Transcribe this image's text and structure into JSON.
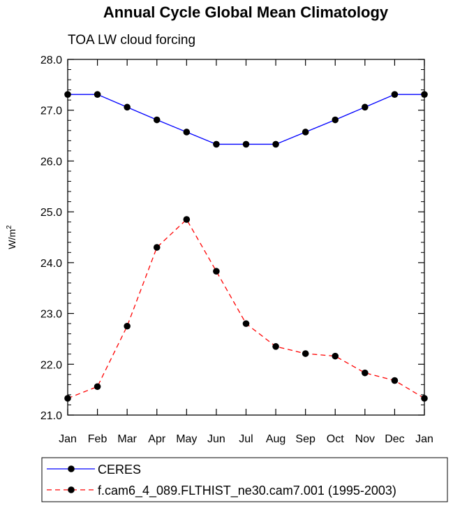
{
  "chart_data": {
    "type": "line",
    "title": "Annual Cycle Global Mean Climatology",
    "subtitle": "TOA LW cloud forcing",
    "ylabel": "W/m",
    "ylabel_sup": "2",
    "xlabel": "",
    "ylim": [
      21.0,
      28.0
    ],
    "yticks": [
      "21.0",
      "22.0",
      "23.0",
      "24.0",
      "25.0",
      "26.0",
      "27.0",
      "28.0"
    ],
    "categories": [
      "Jan",
      "Feb",
      "Mar",
      "Apr",
      "May",
      "Jun",
      "Jul",
      "Aug",
      "Sep",
      "Oct",
      "Nov",
      "Dec",
      "Jan"
    ],
    "series": [
      {
        "name": "CERES",
        "color": "#0000ff",
        "dash": "solid",
        "values": [
          27.31,
          27.31,
          27.06,
          26.81,
          26.57,
          26.33,
          26.33,
          26.33,
          26.57,
          26.81,
          27.06,
          27.31,
          27.31
        ]
      },
      {
        "name": "f.cam6_4_089.FLTHIST_ne30.cam7.001 (1995-2003)",
        "color": "#ff0000",
        "dash": "dashed",
        "values": [
          21.33,
          21.56,
          22.75,
          24.3,
          24.85,
          23.83,
          22.8,
          22.35,
          22.21,
          22.16,
          21.83,
          21.68,
          21.33
        ]
      }
    ]
  }
}
